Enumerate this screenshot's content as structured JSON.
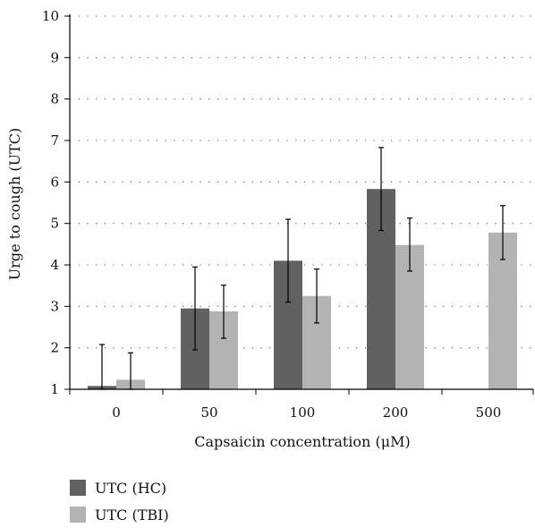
{
  "chart_data": {
    "type": "bar",
    "categories": [
      "0",
      "50",
      "100",
      "200",
      "500"
    ],
    "series": [
      {
        "name": "UTC (HC)",
        "color": "#616161",
        "values": [
          1.08,
          2.95,
          4.1,
          5.83,
          null
        ],
        "err_low": [
          0.08,
          1.0,
          1.0,
          1.0,
          null
        ],
        "err_high": [
          1.0,
          1.0,
          1.0,
          1.0,
          null
        ]
      },
      {
        "name": "UTC (TBI)",
        "color": "#b3b3b3",
        "values": [
          1.23,
          2.88,
          3.25,
          4.48,
          4.78
        ],
        "err_low": [
          0.23,
          0.65,
          0.65,
          0.63,
          0.65
        ],
        "err_high": [
          0.65,
          0.63,
          0.65,
          0.65,
          0.65
        ]
      }
    ],
    "xlabel": "Capsaicin concentration (μM)",
    "ylabel": "Urge to cough (UTC)",
    "ylim": [
      1,
      10
    ],
    "yticks": [
      "1",
      "2",
      "3",
      "4",
      "5",
      "6",
      "7",
      "8",
      "9",
      "10"
    ],
    "grid": "dotted-horizontal",
    "legend_position": "bottom-left"
  }
}
